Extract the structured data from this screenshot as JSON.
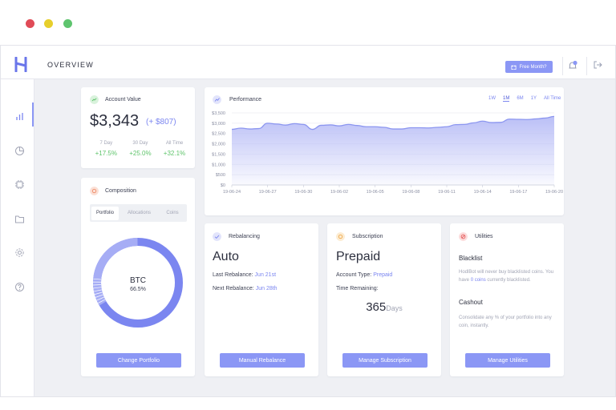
{
  "window": {
    "dot_colors": [
      "#e04b57",
      "#e7cf2c",
      "#5ec46e"
    ]
  },
  "header": {
    "title": "OVERVIEW",
    "free_month_label": "Free Month?",
    "logo_letter": "H",
    "notification_count": "1"
  },
  "sidebar": {
    "items": [
      "chart-bars-icon",
      "pie-chart-icon",
      "chip-icon",
      "folder-icon",
      "gear-icon",
      "help-icon"
    ]
  },
  "account_value": {
    "title": "Account Value",
    "value": "$3,343",
    "change": "(+ $807)",
    "periods": [
      {
        "label": "7 Day",
        "value": "+17.5%"
      },
      {
        "label": "30 Day",
        "value": "+25.0%"
      },
      {
        "label": "All Time",
        "value": "+32.1%"
      }
    ]
  },
  "composition": {
    "title": "Composition",
    "tabs": [
      "Portfolio",
      "Allocations",
      "Coins"
    ],
    "active_tab": "Portfolio",
    "center_coin": "BTC",
    "center_pct": "66.5%",
    "button": "Change Portfolio"
  },
  "performance": {
    "title": "Performance",
    "ranges": [
      "1W",
      "1M",
      "6M",
      "1Y",
      "All Time"
    ],
    "active_range": "1M"
  },
  "chart_data": {
    "type": "area",
    "title": "Performance",
    "x_ticks": [
      "19-06-24",
      "19-06-27",
      "19-06-30",
      "19-06-02",
      "19-06-05",
      "19-06-08",
      "19-06-11",
      "19-06-14",
      "19-06-17",
      "19-06-20"
    ],
    "y_ticks": [
      "$0",
      "$500",
      "$1,000",
      "$1,500",
      "$2,000",
      "$2,500",
      "$3,000",
      "$3,500"
    ],
    "ylim": [
      0,
      3500
    ],
    "values": [
      2700,
      2760,
      2720,
      2740,
      3000,
      2960,
      2910,
      2980,
      2940,
      2700,
      2900,
      2920,
      2870,
      2940,
      2890,
      2830,
      2830,
      2800,
      2720,
      2720,
      2780,
      2780,
      2770,
      2800,
      2830,
      2930,
      2940,
      3020,
      3100,
      3030,
      3040,
      3200,
      3190,
      3180,
      3210,
      3250,
      3330
    ],
    "fill_color": "#b7bcf6",
    "line_color": "#8c96f0"
  },
  "rebalancing": {
    "title": "Rebalancing",
    "mode": "Auto",
    "last_label": "Last Rebalance:",
    "last_value": "Jun 21st",
    "next_label": "Next Rebalance:",
    "next_value": "Jun 28th",
    "button": "Manual Rebalance"
  },
  "subscription": {
    "title": "Subscription",
    "plan": "Prepaid",
    "type_label": "Account Type:",
    "type_value": "Prepaid",
    "remaining_label": "Time Remaining:",
    "remaining_value": "365",
    "remaining_unit": "Days",
    "button": "Manage Subscription"
  },
  "utilities": {
    "title": "Utilities",
    "blacklist_title": "Blacklist",
    "blacklist_text_a": "HodlBot will never buy blacklisted coins. You have ",
    "blacklist_link": "0 coins",
    "blacklist_text_b": " currently blacklisted.",
    "cashout_title": "Cashout",
    "cashout_text": "Consolidate any % of your portfolio into any coin, instantly.",
    "button": "Manage Utilities"
  }
}
